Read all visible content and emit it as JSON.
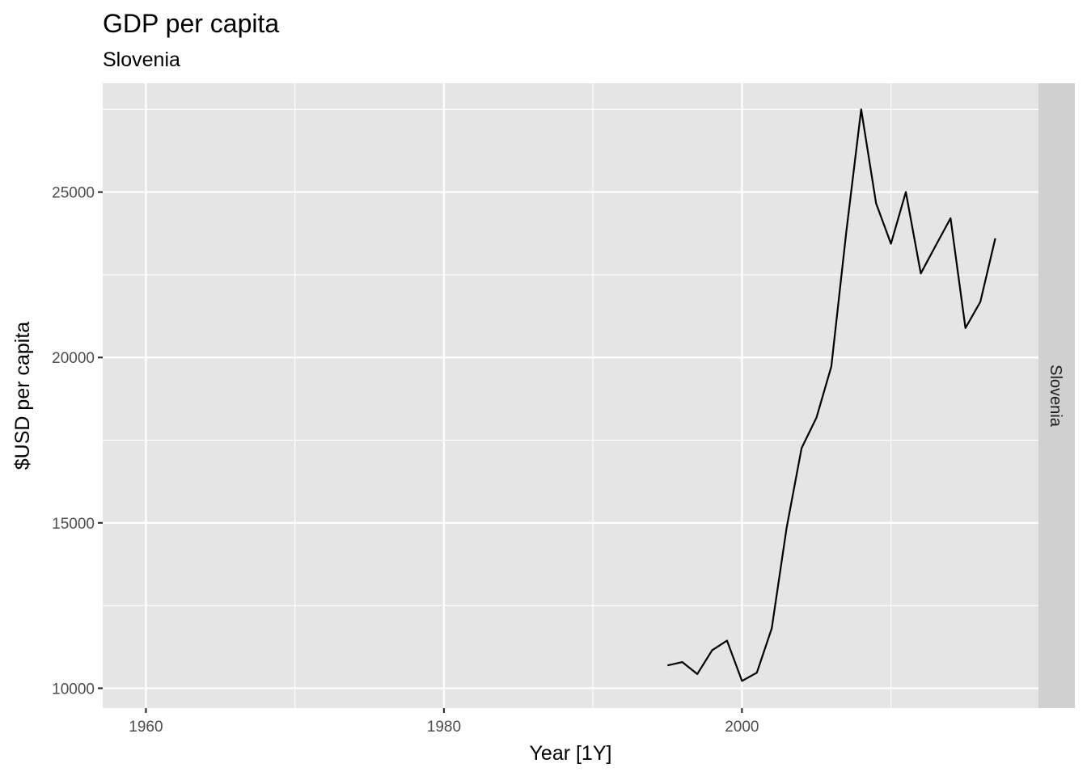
{
  "chart_data": {
    "type": "line",
    "title": "GDP per capita",
    "subtitle": "Slovenia",
    "xlabel": "Year [1Y]",
    "ylabel": "$USD per capita",
    "facet_label": "Slovenia",
    "xlim": [
      1957.1,
      2019.9
    ],
    "ylim": [
      9400,
      28290
    ],
    "x_ticks": [
      1960,
      1980,
      2000
    ],
    "x_tick_labels": [
      "1960",
      "1980",
      "2000"
    ],
    "x_minor_ticks": [
      1970,
      1990,
      2010
    ],
    "y_ticks": [
      10000,
      15000,
      20000,
      25000
    ],
    "y_tick_labels": [
      "10000",
      "15000",
      "20000",
      "25000"
    ],
    "y_minor_ticks": [
      12500,
      17500,
      22500,
      27500
    ],
    "grid": true,
    "colors": {
      "panel": "#e5e5e5",
      "grid": "#ffffff",
      "strip": "#d0d0d0",
      "line": "#000000"
    },
    "series": [
      {
        "x": [
          1995,
          1996,
          1997,
          1998,
          1999,
          2000,
          2001,
          2002,
          2003,
          2004,
          2005,
          2006,
          2007,
          2008,
          2009,
          2010,
          2011,
          2012,
          2013,
          2014,
          2015,
          2016,
          2017
        ],
        "values": [
          10690,
          10790,
          10430,
          11150,
          11440,
          10220,
          10470,
          11810,
          14850,
          17260,
          18180,
          19730,
          23780,
          27500,
          24660,
          23440,
          25000,
          22540,
          23380,
          24210,
          20890,
          21680,
          23600
        ]
      }
    ]
  }
}
